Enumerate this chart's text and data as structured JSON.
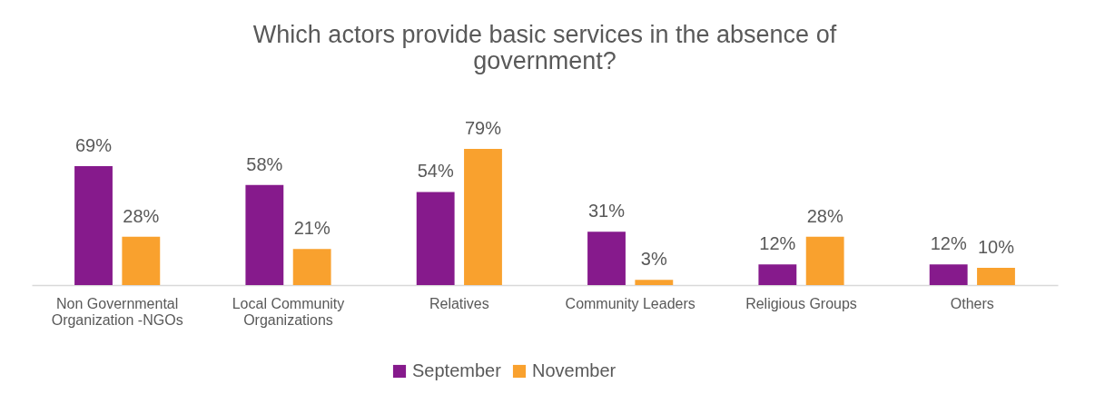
{
  "chart_data": {
    "type": "bar",
    "title": "Which actors provide basic services in the absence of government?",
    "categories": [
      "Non Governmental\nOrganization -NGOs",
      "Local Community\nOrganizations",
      "Relatives",
      "Community Leaders",
      "Religious Groups",
      "Others"
    ],
    "series": [
      {
        "name": "September",
        "color": "#861a8c",
        "values": [
          69,
          58,
          54,
          31,
          12,
          12
        ],
        "value_labels": [
          "69%",
          "58%",
          "54%",
          "31%",
          "12%",
          "12%"
        ]
      },
      {
        "name": "November",
        "color": "#f9a12e",
        "values": [
          28,
          21,
          79,
          3,
          28,
          10
        ],
        "value_labels": [
          "28%",
          "21%",
          "79%",
          "3%",
          "28%",
          "10%"
        ]
      }
    ],
    "legend": "bottom",
    "grid": false
  }
}
